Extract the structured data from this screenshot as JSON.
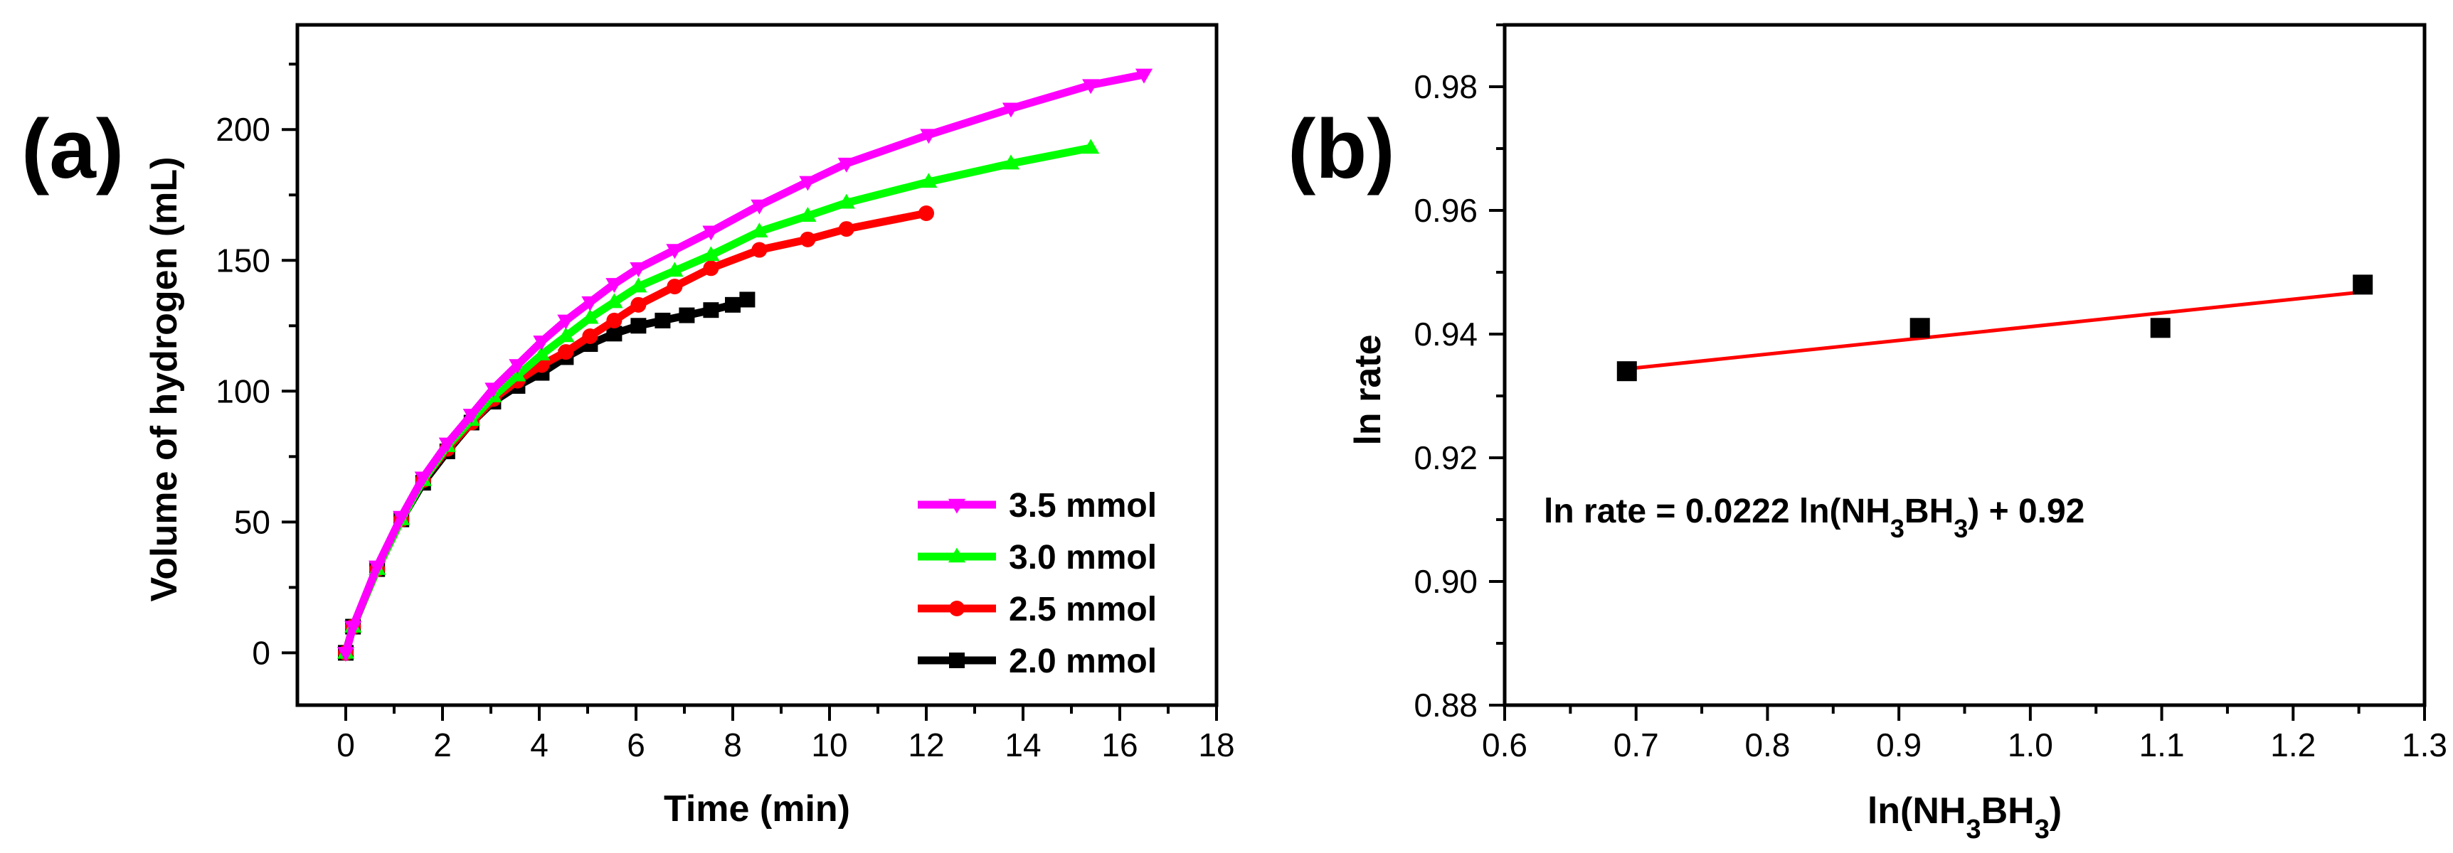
{
  "panels": {
    "a": {
      "label": "(a)"
    },
    "b": {
      "label": "(b)"
    }
  },
  "colors": {
    "series_3_5": "#FF00FF",
    "series_3_0": "#00FF00",
    "series_2_5": "#FF0000",
    "series_2_0": "#000000",
    "fit_line": "#FF0000",
    "points_b": "#000000"
  },
  "chart_data": [
    {
      "type": "line",
      "panel": "a",
      "title": "",
      "xlabel": "Time (min)",
      "ylabel": "Volume of hydrogen (mL)",
      "xlim": [
        -1,
        18
      ],
      "ylim": [
        -20,
        240
      ],
      "xticks": [
        0,
        2,
        4,
        6,
        8,
        10,
        12,
        14,
        16,
        18
      ],
      "xtick_labels": [
        "0",
        "2",
        "4",
        "6",
        "8",
        "10",
        "12",
        "14",
        "16",
        "18"
      ],
      "yticks": [
        0,
        50,
        100,
        150,
        200
      ],
      "ytick_labels": [
        "0",
        "50",
        "100",
        "150",
        "200"
      ],
      "legend_position": "bottom-right",
      "series": [
        {
          "name": "3.5 mmol",
          "marker": "triangle-down",
          "color": "#FF00FF",
          "x": [
            0,
            0.15,
            0.65,
            1.15,
            1.6,
            2.1,
            2.6,
            3.05,
            3.55,
            4.05,
            4.55,
            5.05,
            5.55,
            6.05,
            6.8,
            7.55,
            8.55,
            9.55,
            10.35,
            12.05,
            13.75,
            15.4,
            16.5
          ],
          "values": [
            0,
            10,
            33,
            52,
            67,
            80,
            91,
            101,
            110,
            119,
            127,
            134,
            141,
            147,
            154,
            161,
            171,
            180,
            187,
            198,
            208,
            217,
            221
          ]
        },
        {
          "name": "3.0 mmol",
          "marker": "triangle-up",
          "color": "#00FF00",
          "x": [
            0,
            0.15,
            0.65,
            1.15,
            1.6,
            2.1,
            2.6,
            3.05,
            3.55,
            4.05,
            4.55,
            5.05,
            5.55,
            6.05,
            6.8,
            7.55,
            8.55,
            9.55,
            10.35,
            12.05,
            13.75,
            15.4
          ],
          "values": [
            0,
            10,
            32,
            51,
            66,
            79,
            89,
            98,
            106,
            114,
            121,
            128,
            134,
            140,
            146,
            152,
            161,
            167,
            172,
            180,
            187,
            193
          ]
        },
        {
          "name": "2.5 mmol",
          "marker": "circle",
          "color": "#FF0000",
          "x": [
            0,
            0.15,
            0.65,
            1.15,
            1.6,
            2.1,
            2.6,
            3.05,
            3.55,
            4.05,
            4.55,
            5.05,
            5.55,
            6.05,
            6.8,
            7.55,
            8.55,
            9.55,
            10.35,
            12.0
          ],
          "values": [
            0,
            10,
            32,
            51,
            66,
            78,
            88,
            97,
            104,
            110,
            115,
            121,
            127,
            133,
            140,
            147,
            154,
            158,
            162,
            168
          ]
        },
        {
          "name": "2.0 mmol",
          "marker": "square",
          "color": "#000000",
          "x": [
            0,
            0.15,
            0.65,
            1.15,
            1.6,
            2.1,
            2.6,
            3.05,
            3.55,
            4.05,
            4.55,
            5.05,
            5.55,
            6.05,
            6.55,
            7.05,
            7.55,
            8.0,
            8.3
          ],
          "values": [
            0,
            10,
            32,
            51,
            65,
            77,
            88,
            96,
            102,
            107,
            113,
            118,
            122,
            125,
            127,
            129,
            131,
            133,
            135
          ]
        }
      ]
    },
    {
      "type": "scatter",
      "panel": "b",
      "title": "",
      "xlabel_parts": [
        {
          "text": "ln(NH",
          "sub": false
        },
        {
          "text": "3",
          "sub": true
        },
        {
          "text": "BH",
          "sub": false
        },
        {
          "text": "3",
          "sub": true
        },
        {
          "text": ")",
          "sub": false
        }
      ],
      "ylabel": "ln rate",
      "xlim": [
        0.6,
        1.3
      ],
      "ylim": [
        0.88,
        0.99
      ],
      "xticks": [
        0.6,
        0.7,
        0.8,
        0.9,
        1.0,
        1.1,
        1.2,
        1.3
      ],
      "xtick_labels": [
        "0.6",
        "0.7",
        "0.8",
        "0.9",
        "1.0",
        "1.1",
        "1.2",
        "1.3"
      ],
      "yticks": [
        0.88,
        0.9,
        0.92,
        0.94,
        0.96,
        0.98
      ],
      "ytick_labels": [
        "0.88",
        "0.90",
        "0.92",
        "0.94",
        "0.96",
        "0.98"
      ],
      "points": {
        "x": [
          0.693,
          0.916,
          1.099,
          1.253
        ],
        "y": [
          0.934,
          0.941,
          0.941,
          0.948
        ]
      },
      "fit": {
        "slope": 0.0222,
        "intercept": 0.919,
        "x_range": [
          0.693,
          1.253
        ]
      },
      "annotation_parts": [
        {
          "text": "ln rate = 0.0222 ln(NH",
          "sub": false
        },
        {
          "text": "3",
          "sub": true
        },
        {
          "text": "BH",
          "sub": false
        },
        {
          "text": "3",
          "sub": true
        },
        {
          "text": ") + 0.92",
          "sub": false
        }
      ]
    }
  ]
}
